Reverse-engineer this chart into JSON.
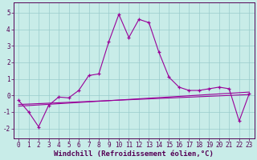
{
  "xlabel": "Windchill (Refroidissement éolien,°C)",
  "bg_color": "#c8ece8",
  "line_color": "#990099",
  "grid_color": "#99cccc",
  "x_ticks": [
    0,
    1,
    2,
    3,
    4,
    5,
    6,
    7,
    8,
    9,
    10,
    11,
    12,
    13,
    14,
    15,
    16,
    17,
    18,
    19,
    20,
    21,
    22,
    23
  ],
  "y_ticks": [
    -2,
    -1,
    0,
    1,
    2,
    3,
    4,
    5
  ],
  "ylim": [
    -2.6,
    5.6
  ],
  "xlim": [
    -0.5,
    23.5
  ],
  "series1_x": [
    0,
    1,
    2,
    3,
    4,
    5,
    6,
    7,
    8,
    9,
    10,
    11,
    12,
    13,
    14,
    15,
    16,
    17,
    18,
    19,
    20,
    21,
    22,
    23
  ],
  "series1_y": [
    -0.3,
    -1.0,
    -1.9,
    -0.6,
    -0.1,
    -0.15,
    0.3,
    1.2,
    1.3,
    3.25,
    4.9,
    3.5,
    4.6,
    4.4,
    2.6,
    1.1,
    0.5,
    0.3,
    0.3,
    0.4,
    0.5,
    0.4,
    -1.55,
    0.1
  ],
  "series2_x": [
    0,
    23
  ],
  "series2_y": [
    -0.55,
    0.05
  ],
  "series3_x": [
    0,
    23
  ],
  "series3_y": [
    -0.65,
    0.2
  ],
  "tick_fontsize": 5.5,
  "label_fontsize": 6.5,
  "spine_color": "#550055",
  "tick_color": "#550055"
}
